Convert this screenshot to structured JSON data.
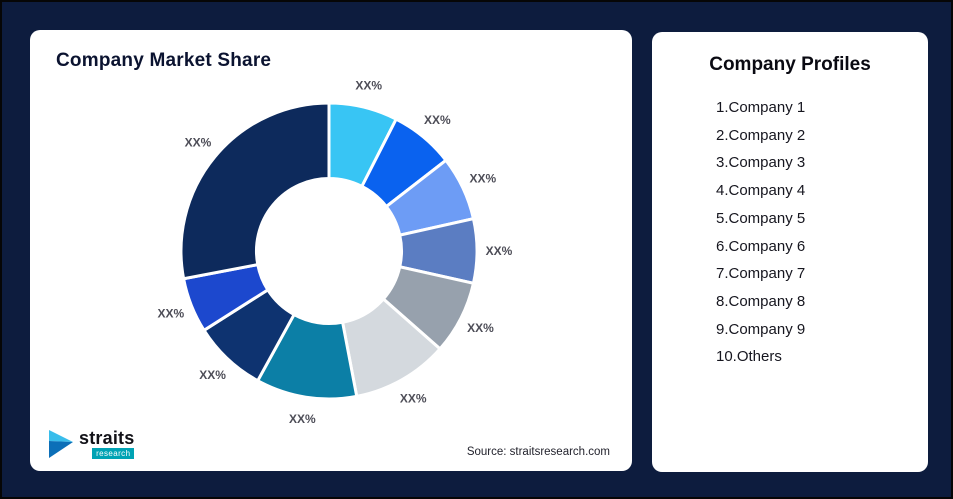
{
  "page": {
    "background": "#0d1c3e",
    "border_color": "#060606"
  },
  "market_share_card": {
    "title": "Company Market Share",
    "source_text": "Source: straitsresearch.com",
    "logo": {
      "brand": "straits",
      "brand_sub": "research",
      "badge_color": "#00a3b4",
      "icon_color_top": "#39bdeb",
      "icon_color_bottom": "#0c6fb8"
    }
  },
  "chart_data": {
    "type": "pie",
    "subtype": "donut",
    "title": "Company Market Share",
    "start_angle_deg": 0,
    "direction": "clockwise",
    "inner_radius_ratio": 0.49,
    "legend": "none",
    "segments": [
      {
        "label": "XX%",
        "value": 7.5,
        "color": "#38c5f4"
      },
      {
        "label": "XX%",
        "value": 7,
        "color": "#0a62ef"
      },
      {
        "label": "XX%",
        "value": 7,
        "color": "#6d9cf5"
      },
      {
        "label": "XX%",
        "value": 7,
        "color": "#5b7dc2"
      },
      {
        "label": "XX%",
        "value": 8,
        "color": "#97a1ad"
      },
      {
        "label": "XX%",
        "value": 10.5,
        "color": "#d4d9de"
      },
      {
        "label": "XX%",
        "value": 11,
        "color": "#0c7fa6"
      },
      {
        "label": "XX%",
        "value": 8,
        "color": "#0e3370"
      },
      {
        "label": "XX%",
        "value": 6,
        "color": "#1c48ce"
      },
      {
        "label": "XX%",
        "value": 28,
        "color": "#0d2a5c"
      }
    ]
  },
  "profiles_card": {
    "title": "Company Profiles",
    "items": [
      "1.Company 1",
      "2.Company 2",
      "3.Company 3",
      "4.Company 4",
      "5.Company 5",
      "6.Company 6",
      "7.Company 7",
      "8.Company 8",
      "9.Company 9",
      "10.Others"
    ]
  }
}
